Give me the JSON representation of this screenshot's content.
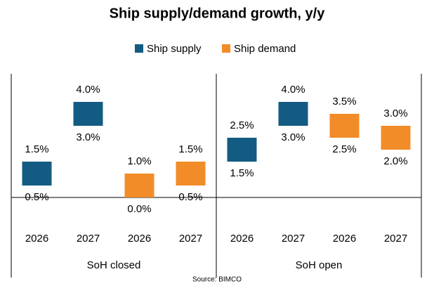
{
  "chart_data": {
    "type": "floating_bar",
    "title": "Ship supply/demand  growth, y/y",
    "categories": [
      "2026",
      "2027",
      "2026",
      "2027",
      "2026",
      "2027",
      "2026",
      "2027"
    ],
    "group_labels": [
      "SoH closed",
      "SoH open"
    ],
    "series": [
      {
        "name": "Ship supply",
        "color": "#135b82",
        "low": [
          0.5,
          3.0,
          null,
          null,
          1.5,
          3.0,
          null,
          null
        ],
        "low_labels": [
          "0.5%",
          "3.0%",
          null,
          null,
          "1.5%",
          "3.0%",
          null,
          null
        ],
        "high": [
          1.5,
          4.0,
          null,
          null,
          2.5,
          4.0,
          null,
          null
        ],
        "high_labels": [
          "1.5%",
          "4.0%",
          null,
          null,
          "2.5%",
          "4.0%",
          null,
          null
        ]
      },
      {
        "name": "Ship demand",
        "color": "#f28c28",
        "low": [
          null,
          null,
          0.0,
          0.5,
          null,
          null,
          2.5,
          2.0
        ],
        "low_labels": [
          null,
          null,
          "0.0%",
          "0.5%",
          null,
          null,
          "2.5%",
          "2.0%"
        ],
        "high": [
          null,
          null,
          1.0,
          1.5,
          null,
          null,
          3.5,
          3.0
        ],
        "high_labels": [
          null,
          null,
          "1.0%",
          "1.5%",
          null,
          null,
          "3.5%",
          "3.0%"
        ]
      }
    ],
    "source": "Source: BIMCO"
  }
}
